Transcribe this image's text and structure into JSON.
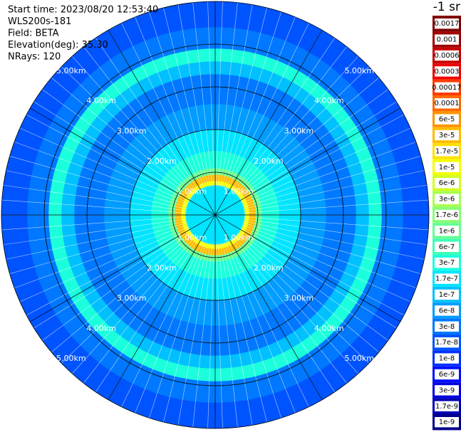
{
  "chart_data": {
    "type": "ppi",
    "info_lines": [
      "Start time: 2023/08/20 12:53:40",
      "WLS200s-181",
      "Field: BETA",
      "Elevation(deg): 35.30",
      "NRays: 120"
    ],
    "colorbar_title": "-1 sr",
    "rlim": [
      0,
      5
    ],
    "rings": [
      {
        "value": 1,
        "label": "1.00km"
      },
      {
        "value": 2,
        "label": "2.00km"
      },
      {
        "value": 3,
        "label": "3.00km"
      },
      {
        "value": 4,
        "label": "4.00km"
      },
      {
        "value": 5,
        "label": "5.00km"
      }
    ],
    "levels": [
      {
        "value": 0.0017,
        "label": "0.0017",
        "color": "#7f0000"
      },
      {
        "value": 0.001,
        "label": "0.001",
        "color": "#a00000"
      },
      {
        "value": 0.0006,
        "label": "0.0006",
        "color": "#c80000"
      },
      {
        "value": 0.0003,
        "label": "0.0003",
        "color": "#f00000"
      },
      {
        "value": 0.00017,
        "label": "0.00017",
        "color": "#ff3c00"
      },
      {
        "value": 0.0001,
        "label": "0.0001",
        "color": "#ff6a00"
      },
      {
        "value": 6e-05,
        "label": "6e-5",
        "color": "#ff9400"
      },
      {
        "value": 3e-05,
        "label": "3e-5",
        "color": "#ffbc00"
      },
      {
        "value": 1.7e-05,
        "label": "1.7e-5",
        "color": "#ffe000"
      },
      {
        "value": 1e-05,
        "label": "1e-5",
        "color": "#f4ff00"
      },
      {
        "value": 6e-06,
        "label": "6e-6",
        "color": "#d0ff24"
      },
      {
        "value": 3e-06,
        "label": "3e-6",
        "color": "#a8ff50"
      },
      {
        "value": 1.7e-06,
        "label": "1.7e-6",
        "color": "#86ff72"
      },
      {
        "value": 1e-06,
        "label": "1e-6",
        "color": "#64ff94"
      },
      {
        "value": 6e-07,
        "label": "6e-7",
        "color": "#40ffb8"
      },
      {
        "value": 3e-07,
        "label": "3e-7",
        "color": "#1cffdc"
      },
      {
        "value": 1.7e-07,
        "label": "1.7e-7",
        "color": "#00e4ff"
      },
      {
        "value": 1e-07,
        "label": "1e-7",
        "color": "#00c0ff"
      },
      {
        "value": 6e-08,
        "label": "6e-8",
        "color": "#009cff"
      },
      {
        "value": 3e-08,
        "label": "3e-8",
        "color": "#0078ff"
      },
      {
        "value": 1.7e-08,
        "label": "1.7e-8",
        "color": "#0054ff"
      },
      {
        "value": 1e-08,
        "label": "1e-8",
        "color": "#0030ff"
      },
      {
        "value": 6e-09,
        "label": "6e-9",
        "color": "#000cff"
      },
      {
        "value": 3e-09,
        "label": "3e-9",
        "color": "#0000e0"
      },
      {
        "value": 1.7e-09,
        "label": "1.7e-9",
        "color": "#0000b4"
      },
      {
        "value": 1e-09,
        "label": "1e-9",
        "color": "#00008a"
      }
    ],
    "range_bins_km": [
      0,
      0.7,
      0.8,
      0.95,
      1.1,
      1.5,
      2.0,
      2.6,
      3.3,
      3.6,
      3.9,
      4.4,
      5.0
    ],
    "values": [
      1.7e-07,
      1e-05,
      3e-05,
      1e-06,
      3e-07,
      1.7e-07,
      6e-08,
      3e-08,
      1e-07,
      3e-07,
      3e-08,
      1.7e-08
    ]
  }
}
